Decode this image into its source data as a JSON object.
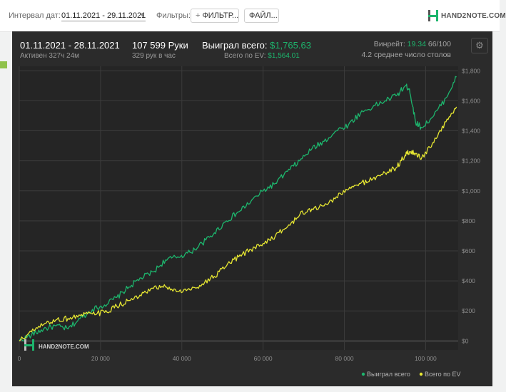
{
  "toolbar": {
    "date_label": "Интервал дат:",
    "date_value": "01.11.2021 - 29.11.2021",
    "filters_label": "Фильтры:",
    "filter_button": "ФИЛЬТР...",
    "file_button": "ФАЙЛ...",
    "brand": "HAND2NOTE.COM"
  },
  "stats": {
    "period": "01.11.2021 - 28.11.2021",
    "active": "Активен 327ч 24м",
    "hands": "107 599 Руки",
    "hands_per_hour": "329 рук в час",
    "won_label": "Выиграл всего:",
    "won_value": "$1,765.63",
    "ev_label": "Всего по EV:",
    "ev_value": "$1,564.01",
    "winrate_label": "Винрейт:",
    "winrate_value": "19.34",
    "winrate_sample": "66/100",
    "tables": "4.2 среднее число столов"
  },
  "watermark": "HAND2NOTE.COM",
  "colors": {
    "won": "#1db56d",
    "ev": "#e6e632",
    "background": "#2b2b2b",
    "grid": "#3c3c3c"
  },
  "chart_data": {
    "type": "line",
    "x_ticks": [
      0,
      20000,
      40000,
      60000,
      80000,
      100000
    ],
    "x_tick_labels": [
      "0",
      "20 000",
      "40 000",
      "60 000",
      "80 000",
      "100 000"
    ],
    "y_ticks": [
      0,
      200,
      400,
      600,
      800,
      1000,
      1200,
      1400,
      1600,
      1800
    ],
    "y_tick_labels": [
      "$0",
      "$200",
      "$400",
      "$600",
      "$800",
      "$1,000",
      "$1,200",
      "$1,400",
      "$1,600",
      "$1,800"
    ],
    "xlim": [
      0,
      108000
    ],
    "ylim": [
      -60,
      1830
    ],
    "legend_position": "bottom-right",
    "series": [
      {
        "name": "Выиграл всего",
        "color": "#1db56d",
        "x": [
          0,
          3000,
          6000,
          9000,
          12000,
          15000,
          18000,
          21000,
          24000,
          27000,
          30000,
          33000,
          36000,
          39000,
          42000,
          45000,
          48000,
          51000,
          54000,
          57000,
          60000,
          63000,
          66000,
          69000,
          72000,
          75000,
          78000,
          81000,
          84000,
          87000,
          90000,
          93000,
          95000,
          96000,
          97500,
          99000,
          102000,
          105000,
          107599
        ],
        "y": [
          0,
          40,
          80,
          100,
          80,
          150,
          210,
          240,
          290,
          360,
          420,
          460,
          540,
          560,
          590,
          650,
          720,
          800,
          860,
          930,
          1000,
          1050,
          1130,
          1200,
          1280,
          1330,
          1400,
          1440,
          1520,
          1560,
          1600,
          1640,
          1700,
          1680,
          1460,
          1420,
          1500,
          1620,
          1760
        ]
      },
      {
        "name": "Всего по EV",
        "color": "#e6e632",
        "x": [
          0,
          3000,
          6000,
          9000,
          12000,
          15000,
          18000,
          21000,
          24000,
          27000,
          30000,
          33000,
          36000,
          39000,
          42000,
          45000,
          48000,
          51000,
          54000,
          57000,
          60000,
          63000,
          66000,
          69000,
          72000,
          75000,
          78000,
          81000,
          84000,
          87000,
          90000,
          93000,
          95000,
          96000,
          97500,
          99000,
          102000,
          105000,
          107599
        ],
        "y": [
          0,
          60,
          110,
          140,
          150,
          170,
          180,
          190,
          230,
          270,
          300,
          350,
          360,
          330,
          340,
          380,
          430,
          500,
          560,
          610,
          650,
          700,
          760,
          840,
          880,
          900,
          960,
          1010,
          1050,
          1080,
          1120,
          1160,
          1240,
          1260,
          1250,
          1220,
          1320,
          1460,
          1560
        ]
      }
    ]
  }
}
